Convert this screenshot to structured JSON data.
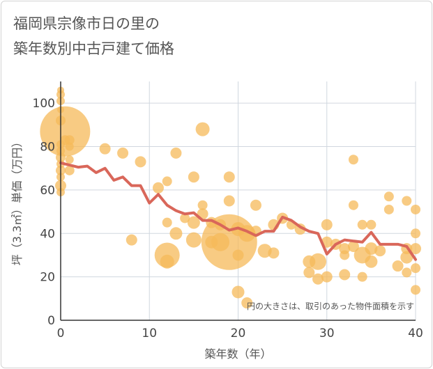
{
  "title": {
    "line1": "福岡県宗像市日の里の",
    "line2": "築年数別中古戸建て価格"
  },
  "chart_data": {
    "type": "scatter",
    "title": "福岡県宗像市日の里の築年数別中古戸建て価格",
    "xlabel": "築年数（年）",
    "ylabel": "坪（3.3㎡）単価（万円）",
    "xlim": [
      0,
      40
    ],
    "ylim": [
      0,
      110
    ],
    "x_ticks": [
      0,
      10,
      20,
      30,
      40
    ],
    "y_ticks": [
      0,
      20,
      40,
      60,
      80,
      100
    ],
    "grid": true,
    "annotation": "円の大きさは、取引のあった物件面積を示す",
    "colors": {
      "bubble": "#f5b95a",
      "line": "#d9675a",
      "grid": "#d0d7df"
    },
    "series": [
      {
        "type": "line",
        "x": [
          0,
          1,
          2,
          3,
          4,
          5,
          6,
          7,
          8,
          9,
          10,
          11,
          12,
          13,
          14,
          15,
          16,
          17,
          18,
          19,
          20,
          21,
          22,
          23,
          24,
          25,
          26,
          27,
          28,
          29,
          30,
          31,
          32,
          33,
          34,
          35,
          36,
          37,
          38,
          39,
          40
        ],
        "values": [
          72.5,
          71.5,
          70.5,
          71,
          68,
          70,
          64.5,
          66,
          62,
          62,
          54,
          58,
          53,
          50.5,
          49,
          49.5,
          46,
          46,
          44,
          41.5,
          42.5,
          41,
          39,
          41,
          41,
          47.5,
          46,
          43,
          41,
          40,
          30.5,
          35,
          37,
          36.5,
          36,
          40.5,
          35,
          35,
          35,
          34,
          28
        ]
      },
      {
        "type": "bubble",
        "points": [
          {
            "x": 0,
            "y": 106,
            "s": 5
          },
          {
            "x": 0,
            "y": 104,
            "s": 6
          },
          {
            "x": 0,
            "y": 101,
            "s": 6
          },
          {
            "x": 0,
            "y": 97,
            "s": 5
          },
          {
            "x": 0,
            "y": 92,
            "s": 7
          },
          {
            "x": 0.5,
            "y": 87,
            "s": 36
          },
          {
            "x": 0,
            "y": 81,
            "s": 6
          },
          {
            "x": 0.5,
            "y": 83,
            "s": 7
          },
          {
            "x": 0,
            "y": 78,
            "s": 6
          },
          {
            "x": 0,
            "y": 75,
            "s": 7
          },
          {
            "x": 0,
            "y": 72,
            "s": 6
          },
          {
            "x": 0,
            "y": 69,
            "s": 7
          },
          {
            "x": 0,
            "y": 66,
            "s": 6
          },
          {
            "x": 0,
            "y": 62,
            "s": 8
          },
          {
            "x": 0,
            "y": 59,
            "s": 6
          },
          {
            "x": 1,
            "y": 83,
            "s": 7
          },
          {
            "x": 1,
            "y": 80,
            "s": 6
          },
          {
            "x": 1,
            "y": 74,
            "s": 6
          },
          {
            "x": 1,
            "y": 69,
            "s": 7
          },
          {
            "x": 5,
            "y": 79,
            "s": 8
          },
          {
            "x": 7,
            "y": 77,
            "s": 8
          },
          {
            "x": 8,
            "y": 37,
            "s": 8
          },
          {
            "x": 9,
            "y": 73,
            "s": 8
          },
          {
            "x": 11,
            "y": 61,
            "s": 8
          },
          {
            "x": 12,
            "y": 64,
            "s": 7
          },
          {
            "x": 12,
            "y": 45,
            "s": 7
          },
          {
            "x": 12,
            "y": 30,
            "s": 18
          },
          {
            "x": 12,
            "y": 27,
            "s": 10
          },
          {
            "x": 13,
            "y": 77,
            "s": 8
          },
          {
            "x": 13,
            "y": 40,
            "s": 9
          },
          {
            "x": 14,
            "y": 47,
            "s": 7
          },
          {
            "x": 15,
            "y": 66,
            "s": 8
          },
          {
            "x": 15,
            "y": 45,
            "s": 9
          },
          {
            "x": 15,
            "y": 37,
            "s": 11
          },
          {
            "x": 16,
            "y": 88,
            "s": 10
          },
          {
            "x": 16,
            "y": 53,
            "s": 7
          },
          {
            "x": 16,
            "y": 49,
            "s": 8
          },
          {
            "x": 17,
            "y": 45,
            "s": 8
          },
          {
            "x": 17,
            "y": 36,
            "s": 9
          },
          {
            "x": 18,
            "y": 36,
            "s": 13
          },
          {
            "x": 18,
            "y": 44,
            "s": 8
          },
          {
            "x": 19,
            "y": 66,
            "s": 8
          },
          {
            "x": 19,
            "y": 55,
            "s": 8
          },
          {
            "x": 19,
            "y": 36,
            "s": 40
          },
          {
            "x": 20,
            "y": 42,
            "s": 10
          },
          {
            "x": 20,
            "y": 30,
            "s": 8
          },
          {
            "x": 20,
            "y": 13,
            "s": 9
          },
          {
            "x": 21,
            "y": 40,
            "s": 12
          },
          {
            "x": 21,
            "y": 8,
            "s": 8
          },
          {
            "x": 22,
            "y": 53,
            "s": 8
          },
          {
            "x": 22,
            "y": 41,
            "s": 8
          },
          {
            "x": 23,
            "y": 32,
            "s": 10
          },
          {
            "x": 24,
            "y": 44,
            "s": 8
          },
          {
            "x": 24,
            "y": 31,
            "s": 8
          },
          {
            "x": 25,
            "y": 47,
            "s": 8
          },
          {
            "x": 26,
            "y": 44,
            "s": 7
          },
          {
            "x": 27,
            "y": 42,
            "s": 8
          },
          {
            "x": 28,
            "y": 27,
            "s": 9
          },
          {
            "x": 28,
            "y": 22,
            "s": 8
          },
          {
            "x": 29,
            "y": 27,
            "s": 12
          },
          {
            "x": 29,
            "y": 19,
            "s": 8
          },
          {
            "x": 30,
            "y": 44,
            "s": 8
          },
          {
            "x": 30,
            "y": 36,
            "s": 8
          },
          {
            "x": 30,
            "y": 20,
            "s": 8
          },
          {
            "x": 31,
            "y": 35,
            "s": 8
          },
          {
            "x": 32,
            "y": 33,
            "s": 8
          },
          {
            "x": 32,
            "y": 30,
            "s": 7
          },
          {
            "x": 32,
            "y": 21,
            "s": 8
          },
          {
            "x": 33,
            "y": 74,
            "s": 7
          },
          {
            "x": 33,
            "y": 53,
            "s": 7
          },
          {
            "x": 33,
            "y": 34,
            "s": 8
          },
          {
            "x": 34,
            "y": 44,
            "s": 7
          },
          {
            "x": 34,
            "y": 30,
            "s": 12
          },
          {
            "x": 34,
            "y": 20,
            "s": 7
          },
          {
            "x": 35,
            "y": 44,
            "s": 7
          },
          {
            "x": 35,
            "y": 33,
            "s": 9
          },
          {
            "x": 35,
            "y": 27,
            "s": 9
          },
          {
            "x": 36,
            "y": 32,
            "s": 8
          },
          {
            "x": 37,
            "y": 57,
            "s": 7
          },
          {
            "x": 37,
            "y": 51,
            "s": 7
          },
          {
            "x": 38,
            "y": 25,
            "s": 8
          },
          {
            "x": 39,
            "y": 55,
            "s": 7
          },
          {
            "x": 39,
            "y": 33,
            "s": 8
          },
          {
            "x": 39,
            "y": 29,
            "s": 9
          },
          {
            "x": 39,
            "y": 22,
            "s": 7
          },
          {
            "x": 40,
            "y": 51,
            "s": 7
          },
          {
            "x": 40,
            "y": 40,
            "s": 7
          },
          {
            "x": 40,
            "y": 33,
            "s": 8
          },
          {
            "x": 40,
            "y": 24,
            "s": 7
          },
          {
            "x": 40,
            "y": 14,
            "s": 7
          }
        ]
      }
    ]
  }
}
